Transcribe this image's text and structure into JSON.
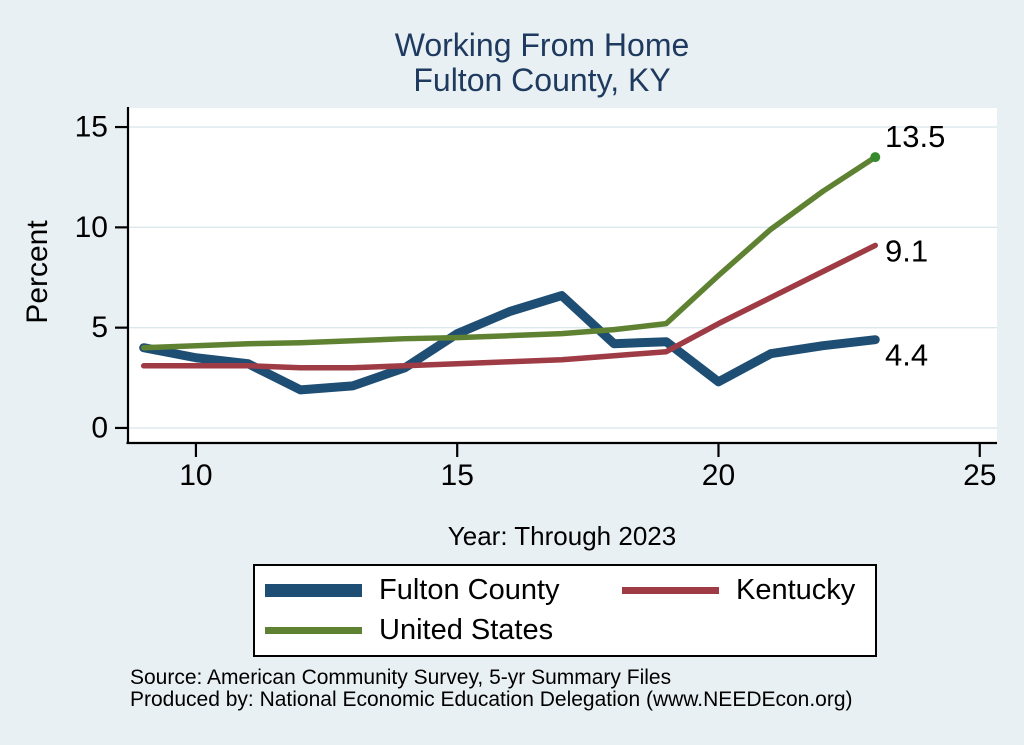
{
  "title": {
    "line1": "Working From Home",
    "line2": "Fulton County, KY"
  },
  "chart_data": {
    "type": "line",
    "title": "Working From Home — Fulton County, KY",
    "xlabel": "Year: Through 2023",
    "ylabel": "Percent",
    "x": [
      2009,
      2010,
      2011,
      2012,
      2013,
      2014,
      2015,
      2016,
      2017,
      2018,
      2019,
      2020,
      2021,
      2022,
      2023
    ],
    "x_ticks": [
      2010,
      2015,
      2020,
      2025
    ],
    "x_tick_labels": [
      "10",
      "15",
      "20",
      "25"
    ],
    "xlim": [
      2008.7,
      2025.33
    ],
    "y_ticks": [
      0,
      5,
      10,
      15
    ],
    "y_tick_labels": [
      "0",
      "5",
      "10",
      "15"
    ],
    "ylim": [
      -0.75,
      15.95
    ],
    "grid": true,
    "plot_bg": "#ffffff",
    "grid_color": "#dbe8ee",
    "axis_color": "#000000",
    "series": [
      {
        "name": "Fulton County",
        "color": "#1f4e74",
        "end_label": "4.4",
        "values": [
          4.0,
          3.5,
          3.2,
          1.9,
          2.1,
          3.0,
          4.7,
          5.8,
          6.6,
          4.2,
          4.3,
          2.3,
          3.7,
          4.1,
          4.4
        ]
      },
      {
        "name": "Kentucky",
        "color": "#9e3b44",
        "end_label": "9.1",
        "values": [
          3.1,
          3.1,
          3.1,
          3.0,
          3.0,
          3.1,
          3.2,
          3.3,
          3.4,
          3.6,
          3.8,
          5.2,
          6.5,
          7.8,
          9.1
        ]
      },
      {
        "name": "United States",
        "color": "#5f8232",
        "end_label": "13.5",
        "end_marker_color": "#358a2e",
        "values": [
          4.0,
          4.1,
          4.2,
          4.25,
          4.35,
          4.45,
          4.5,
          4.6,
          4.7,
          4.9,
          5.2,
          7.6,
          9.9,
          11.8,
          13.5
        ]
      }
    ],
    "legend_position": "bottom"
  },
  "footer": {
    "source": "Source: American Community Survey, 5-yr Summary Files",
    "produced_by": "Produced by: National Economic Education Delegation (www.NEEDEcon.org)"
  }
}
